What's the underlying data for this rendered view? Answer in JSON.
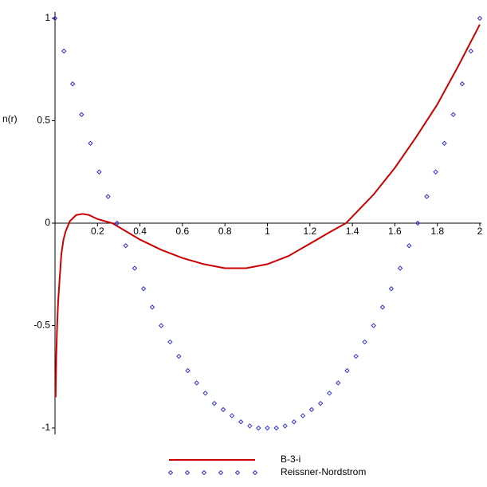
{
  "chart_data": {
    "type": "line",
    "y_label": "n(r)",
    "xlim": [
      0,
      2
    ],
    "ylim": [
      -1,
      1
    ],
    "xticks": [
      0.2,
      0.4,
      0.6,
      0.8,
      1,
      1.2,
      1.4,
      1.6,
      1.8,
      2
    ],
    "yticks": [
      -1,
      -0.5,
      0,
      0.5,
      1
    ],
    "series": [
      {
        "name": "B-3-i",
        "color": "#cc0000",
        "style": "line",
        "x": [
          0.003,
          0.006,
          0.01,
          0.015,
          0.02,
          0.03,
          0.04,
          0.05,
          0.07,
          0.1,
          0.13,
          0.16,
          0.2,
          0.27,
          0.4,
          0.5,
          0.6,
          0.7,
          0.8,
          0.9,
          1.0,
          1.1,
          1.2,
          1.3,
          1.37,
          1.5,
          1.6,
          1.7,
          1.8,
          1.9,
          2.0
        ],
        "values": [
          -0.85,
          -0.65,
          -0.5,
          -0.38,
          -0.3,
          -0.15,
          -0.08,
          -0.04,
          0.01,
          0.04,
          0.045,
          0.04,
          0.02,
          0,
          -0.08,
          -0.13,
          -0.17,
          -0.2,
          -0.22,
          -0.22,
          -0.2,
          -0.16,
          -0.1,
          -0.04,
          0,
          0.14,
          0.27,
          0.42,
          0.58,
          0.77,
          0.97
        ]
      },
      {
        "name": "Reissner-Nordstrom",
        "color": "#3333cc",
        "style": "points",
        "x": [
          0,
          0.042,
          0.083,
          0.125,
          0.167,
          0.208,
          0.25,
          0.292,
          0.333,
          0.375,
          0.417,
          0.458,
          0.5,
          0.542,
          0.583,
          0.625,
          0.667,
          0.708,
          0.75,
          0.792,
          0.833,
          0.875,
          0.917,
          0.958,
          1,
          1.042,
          1.083,
          1.125,
          1.167,
          1.208,
          1.25,
          1.292,
          1.333,
          1.375,
          1.417,
          1.458,
          1.5,
          1.542,
          1.583,
          1.625,
          1.667,
          1.708,
          1.75,
          1.792,
          1.833,
          1.875,
          1.917,
          1.958,
          2
        ],
        "values": [
          1,
          0.84,
          0.68,
          0.53,
          0.39,
          0.25,
          0.13,
          0,
          -0.11,
          -0.22,
          -0.32,
          -0.41,
          -0.5,
          -0.58,
          -0.65,
          -0.72,
          -0.78,
          -0.83,
          -0.88,
          -0.91,
          -0.94,
          -0.97,
          -0.99,
          -1,
          -1,
          -1,
          -0.99,
          -0.97,
          -0.94,
          -0.91,
          -0.88,
          -0.83,
          -0.78,
          -0.72,
          -0.65,
          -0.58,
          -0.5,
          -0.41,
          -0.32,
          -0.22,
          -0.11,
          0,
          0.13,
          0.25,
          0.39,
          0.53,
          0.68,
          0.84,
          1
        ]
      }
    ]
  }
}
